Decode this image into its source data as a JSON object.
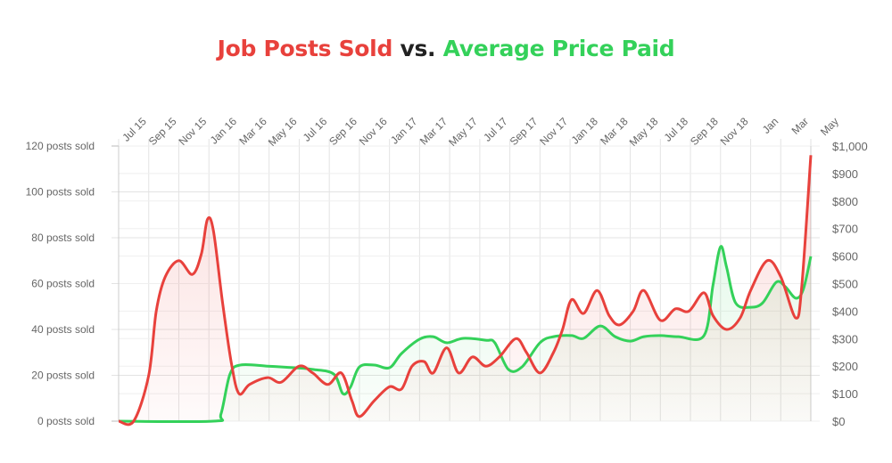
{
  "chart_data": {
    "type": "line",
    "title_parts": [
      "Job Posts Sold",
      "vs.",
      "Average Price Paid"
    ],
    "colors": {
      "posts": "#e8413c",
      "price": "#34d15a",
      "vs": "#222222"
    },
    "x_unit": "months since May 2015",
    "xlim": [
      0,
      46
    ],
    "x_tick_labels": [
      "Jul 15",
      "Sep 15",
      "Nov 15",
      "Jan 16",
      "Mar 16",
      "May 16",
      "Jul 16",
      "Sep 16",
      "Nov 16",
      "Jan 17",
      "Mar 17",
      "May 17",
      "Jul 17",
      "Sep 17",
      "Nov 17",
      "Jan 18",
      "Mar 18",
      "May 18",
      "Jul 18",
      "Sep 18",
      "Nov 18",
      "Jan",
      "Mar",
      "May"
    ],
    "y_left": {
      "label": "posts sold",
      "ylim": [
        0,
        120
      ],
      "ticks": [
        "0 posts sold",
        "20 posts sold",
        "40 posts sold",
        "60 posts sold",
        "80 posts sold",
        "100 posts sold",
        "120 posts sold"
      ]
    },
    "y_right": {
      "label": "price",
      "ylim": [
        0,
        1000
      ],
      "ticks": [
        "$0",
        "$100",
        "$200",
        "$300",
        "$400",
        "$500",
        "$600",
        "$700",
        "$800",
        "$900",
        "$1,000"
      ]
    },
    "grid": true,
    "series": [
      {
        "name": "Job Posts Sold",
        "axis": "left",
        "points": [
          [
            0,
            0
          ],
          [
            1,
            0
          ],
          [
            2,
            20
          ],
          [
            2.5,
            48
          ],
          [
            3.1,
            63
          ],
          [
            4,
            70
          ],
          [
            4.9,
            64
          ],
          [
            5.5,
            73
          ],
          [
            5.9,
            88
          ],
          [
            6.3,
            83
          ],
          [
            6.9,
            52
          ],
          [
            7.5,
            25
          ],
          [
            8,
            12
          ],
          [
            8.7,
            16
          ],
          [
            9.9,
            19
          ],
          [
            10.8,
            17
          ],
          [
            12,
            24
          ],
          [
            12.9,
            21
          ],
          [
            13.9,
            16
          ],
          [
            14.8,
            21
          ],
          [
            15.5,
            9
          ],
          [
            16,
            2
          ],
          [
            17,
            9
          ],
          [
            18,
            15
          ],
          [
            18.8,
            14
          ],
          [
            19.5,
            24
          ],
          [
            20.3,
            26
          ],
          [
            20.9,
            21
          ],
          [
            21.8,
            32
          ],
          [
            22.6,
            21
          ],
          [
            23.5,
            28
          ],
          [
            24.4,
            24
          ],
          [
            25.3,
            28
          ],
          [
            26.4,
            36
          ],
          [
            27.1,
            30
          ],
          [
            28,
            21
          ],
          [
            28.9,
            30
          ],
          [
            29.5,
            40
          ],
          [
            30.1,
            53
          ],
          [
            30.9,
            47
          ],
          [
            31.8,
            57
          ],
          [
            32.6,
            46
          ],
          [
            33.3,
            42
          ],
          [
            34.2,
            48
          ],
          [
            34.9,
            57
          ],
          [
            36,
            44
          ],
          [
            37,
            49
          ],
          [
            37.9,
            48
          ],
          [
            38.9,
            56
          ],
          [
            39.5,
            46
          ],
          [
            40.4,
            40
          ],
          [
            41.3,
            45
          ],
          [
            42,
            57
          ],
          [
            43.1,
            70
          ],
          [
            44,
            63
          ],
          [
            45,
            45
          ],
          [
            45.4,
            59
          ],
          [
            46,
            116
          ]
        ]
      },
      {
        "name": "Average Price Paid",
        "axis": "right",
        "points": [
          [
            0,
            0
          ],
          [
            6.3,
            0
          ],
          [
            6.8,
            26
          ],
          [
            7.4,
            171
          ],
          [
            8.1,
            204
          ],
          [
            9.9,
            200
          ],
          [
            11.7,
            194
          ],
          [
            12.9,
            188
          ],
          [
            14.3,
            171
          ],
          [
            14.9,
            100
          ],
          [
            15.4,
            123
          ],
          [
            16,
            197
          ],
          [
            17,
            204
          ],
          [
            18,
            194
          ],
          [
            18.8,
            246
          ],
          [
            20,
            298
          ],
          [
            20.9,
            307
          ],
          [
            21.8,
            285
          ],
          [
            22.9,
            301
          ],
          [
            24.4,
            294
          ],
          [
            25,
            285
          ],
          [
            25.9,
            188
          ],
          [
            26.8,
            197
          ],
          [
            28,
            285
          ],
          [
            28.9,
            307
          ],
          [
            30.1,
            311
          ],
          [
            30.9,
            301
          ],
          [
            32,
            346
          ],
          [
            33,
            307
          ],
          [
            34,
            291
          ],
          [
            34.9,
            307
          ],
          [
            36,
            311
          ],
          [
            37.2,
            307
          ],
          [
            38.9,
            311
          ],
          [
            39.5,
            495
          ],
          [
            40,
            634
          ],
          [
            40.4,
            560
          ],
          [
            41,
            430
          ],
          [
            42,
            414
          ],
          [
            42.8,
            430
          ],
          [
            43.7,
            505
          ],
          [
            44.3,
            489
          ],
          [
            45,
            447
          ],
          [
            45.5,
            479
          ],
          [
            46,
            599
          ]
        ]
      }
    ]
  }
}
